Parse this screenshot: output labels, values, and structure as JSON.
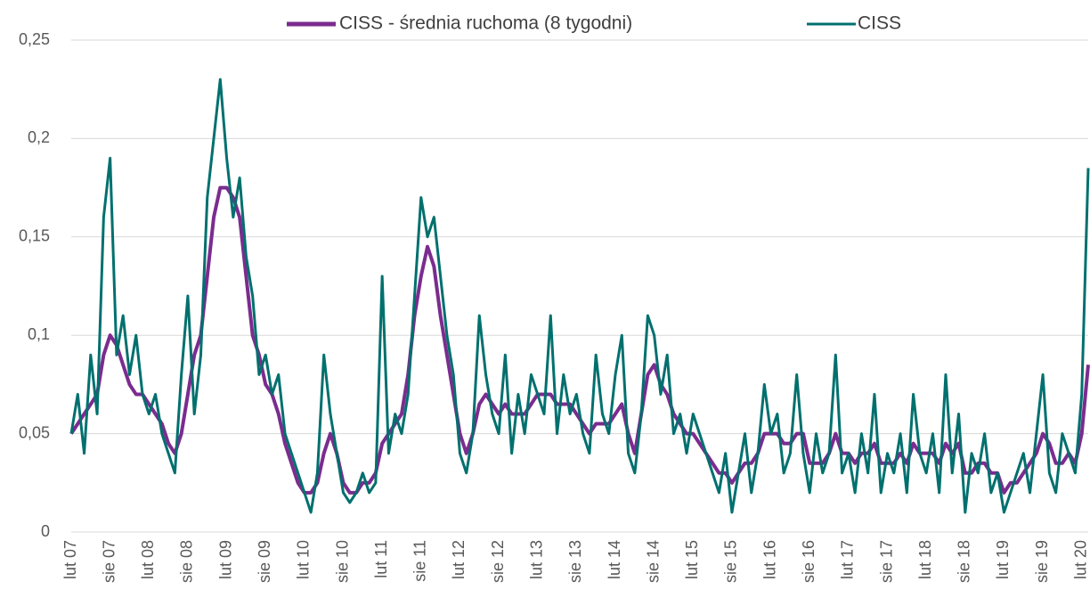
{
  "chart_data": {
    "type": "line",
    "categories": [
      "lut 07",
      null,
      null,
      null,
      null,
      null,
      "sie 07",
      null,
      null,
      null,
      null,
      null,
      "lut 08",
      null,
      null,
      null,
      null,
      null,
      "sie 08",
      null,
      null,
      null,
      null,
      null,
      "lut 09",
      null,
      null,
      null,
      null,
      null,
      "sie 09",
      null,
      null,
      null,
      null,
      null,
      "lut 10",
      null,
      null,
      null,
      null,
      null,
      "sie 10",
      null,
      null,
      null,
      null,
      null,
      "lut 11",
      null,
      null,
      null,
      null,
      null,
      "sie 11",
      null,
      null,
      null,
      null,
      null,
      "lut 12",
      null,
      null,
      null,
      null,
      null,
      "sie 12",
      null,
      null,
      null,
      null,
      null,
      "lut 13",
      null,
      null,
      null,
      null,
      null,
      "sie 13",
      null,
      null,
      null,
      null,
      null,
      "lut 14",
      null,
      null,
      null,
      null,
      null,
      "sie 14",
      null,
      null,
      null,
      null,
      null,
      "lut 15",
      null,
      null,
      null,
      null,
      null,
      "sie 15",
      null,
      null,
      null,
      null,
      null,
      "lut 16",
      null,
      null,
      null,
      null,
      null,
      "sie 16",
      null,
      null,
      null,
      null,
      null,
      "lut 17",
      null,
      null,
      null,
      null,
      null,
      "sie 17",
      null,
      null,
      null,
      null,
      null,
      "lut 18",
      null,
      null,
      null,
      null,
      null,
      "sie 18",
      null,
      null,
      null,
      null,
      null,
      "lut 19",
      null,
      null,
      null,
      null,
      null,
      "sie 19",
      null,
      null,
      null,
      null,
      null,
      "lut 20",
      null
    ],
    "series": [
      {
        "name": "CISS - średnia ruchoma (8 tygodni)",
        "color": "#7b2c8f",
        "values": [
          0.05,
          0.055,
          0.06,
          0.065,
          0.07,
          0.09,
          0.1,
          0.095,
          0.085,
          0.075,
          0.07,
          0.07,
          0.065,
          0.06,
          0.055,
          0.045,
          0.04,
          0.05,
          0.07,
          0.09,
          0.1,
          0.13,
          0.16,
          0.175,
          0.175,
          0.17,
          0.16,
          0.13,
          0.1,
          0.09,
          0.075,
          0.07,
          0.06,
          0.045,
          0.035,
          0.025,
          0.02,
          0.02,
          0.025,
          0.04,
          0.05,
          0.04,
          0.025,
          0.02,
          0.02,
          0.025,
          0.025,
          0.03,
          0.045,
          0.05,
          0.055,
          0.06,
          0.08,
          0.11,
          0.13,
          0.145,
          0.135,
          0.11,
          0.09,
          0.07,
          0.05,
          0.04,
          0.05,
          0.065,
          0.07,
          0.065,
          0.06,
          0.065,
          0.06,
          0.06,
          0.06,
          0.065,
          0.07,
          0.07,
          0.07,
          0.065,
          0.065,
          0.065,
          0.06,
          0.055,
          0.05,
          0.055,
          0.055,
          0.055,
          0.06,
          0.065,
          0.05,
          0.04,
          0.06,
          0.08,
          0.085,
          0.075,
          0.07,
          0.06,
          0.055,
          0.05,
          0.05,
          0.045,
          0.04,
          0.035,
          0.03,
          0.03,
          0.025,
          0.03,
          0.035,
          0.035,
          0.04,
          0.05,
          0.05,
          0.05,
          0.045,
          0.045,
          0.05,
          0.05,
          0.035,
          0.035,
          0.035,
          0.04,
          0.05,
          0.04,
          0.04,
          0.035,
          0.04,
          0.04,
          0.045,
          0.035,
          0.035,
          0.035,
          0.04,
          0.035,
          0.045,
          0.04,
          0.04,
          0.04,
          0.035,
          0.045,
          0.04,
          0.045,
          0.03,
          0.03,
          0.035,
          0.035,
          0.03,
          0.03,
          0.02,
          0.025,
          0.025,
          0.03,
          0.035,
          0.04,
          0.05,
          0.045,
          0.035,
          0.035,
          0.04,
          0.035,
          0.05,
          0.085
        ]
      },
      {
        "name": "CISS",
        "color": "#00706e",
        "values": [
          0.05,
          0.07,
          0.04,
          0.09,
          0.06,
          0.16,
          0.19,
          0.09,
          0.11,
          0.08,
          0.1,
          0.07,
          0.06,
          0.07,
          0.05,
          0.04,
          0.03,
          0.08,
          0.12,
          0.06,
          0.09,
          0.17,
          0.2,
          0.23,
          0.19,
          0.16,
          0.18,
          0.14,
          0.12,
          0.08,
          0.09,
          0.07,
          0.08,
          0.05,
          0.04,
          0.03,
          0.02,
          0.01,
          0.03,
          0.09,
          0.06,
          0.04,
          0.02,
          0.015,
          0.02,
          0.03,
          0.02,
          0.025,
          0.13,
          0.04,
          0.06,
          0.05,
          0.07,
          0.12,
          0.17,
          0.15,
          0.16,
          0.13,
          0.1,
          0.08,
          0.04,
          0.03,
          0.05,
          0.11,
          0.08,
          0.06,
          0.05,
          0.09,
          0.04,
          0.07,
          0.05,
          0.08,
          0.07,
          0.06,
          0.11,
          0.05,
          0.08,
          0.06,
          0.07,
          0.05,
          0.04,
          0.09,
          0.06,
          0.05,
          0.08,
          0.1,
          0.04,
          0.03,
          0.06,
          0.11,
          0.1,
          0.07,
          0.09,
          0.05,
          0.06,
          0.04,
          0.06,
          0.05,
          0.04,
          0.03,
          0.02,
          0.04,
          0.01,
          0.03,
          0.05,
          0.02,
          0.04,
          0.075,
          0.05,
          0.06,
          0.03,
          0.04,
          0.08,
          0.04,
          0.02,
          0.05,
          0.03,
          0.04,
          0.09,
          0.03,
          0.04,
          0.02,
          0.05,
          0.03,
          0.07,
          0.02,
          0.04,
          0.03,
          0.05,
          0.02,
          0.07,
          0.04,
          0.03,
          0.05,
          0.02,
          0.08,
          0.03,
          0.06,
          0.01,
          0.04,
          0.03,
          0.05,
          0.02,
          0.03,
          0.01,
          0.02,
          0.03,
          0.04,
          0.02,
          0.05,
          0.08,
          0.03,
          0.02,
          0.05,
          0.04,
          0.03,
          0.07,
          0.185
        ]
      }
    ],
    "ylim": [
      0,
      0.25
    ],
    "yticks": [
      0,
      {
        "value": 0.05,
        "label": "0,05"
      },
      {
        "value": 0.1,
        "label": "0,1"
      },
      {
        "value": 0.15,
        "label": "0,15"
      },
      {
        "value": 0.2,
        "label": "0,2"
      },
      {
        "value": 0.25,
        "label": "0,25"
      }
    ],
    "grid": true,
    "legend": "top"
  }
}
